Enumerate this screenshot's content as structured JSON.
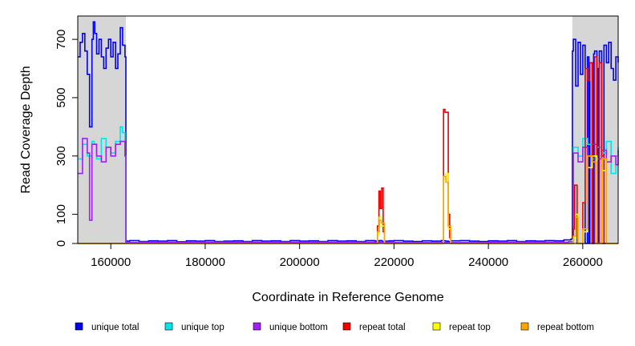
{
  "chart_data": {
    "type": "line",
    "title": "",
    "xlabel": "Coordinate in Reference Genome",
    "ylabel": "Read Coverage Depth",
    "xlim": [
      153000,
      267500
    ],
    "ylim": [
      0,
      780
    ],
    "xticks": [
      160000,
      180000,
      200000,
      220000,
      240000,
      260000
    ],
    "xtick_labels": [
      "160000",
      "180000",
      "200000",
      "220000",
      "240000",
      "260000"
    ],
    "yticks": [
      0,
      100,
      300,
      500,
      700
    ],
    "ytick_labels": [
      "0",
      "100",
      "300",
      "500",
      "700"
    ],
    "shaded_regions": [
      [
        153000,
        163200
      ],
      [
        257800,
        267500
      ]
    ],
    "grid": false,
    "legend_position": "bottom",
    "series": [
      {
        "name": "unique total",
        "color": "#0000ee",
        "x": [
          153000,
          153500,
          154000,
          154500,
          155000,
          155500,
          156000,
          156300,
          156600,
          157000,
          157500,
          158000,
          158500,
          159000,
          159500,
          160000,
          160500,
          161000,
          161500,
          162000,
          162500,
          163000,
          163200,
          163300,
          164000,
          166000,
          168000,
          170000,
          172000,
          174000,
          176000,
          178000,
          180000,
          182000,
          184000,
          186000,
          188000,
          190000,
          192000,
          194000,
          196000,
          198000,
          200000,
          202000,
          204000,
          206000,
          208000,
          210000,
          212000,
          214000,
          216000,
          216500,
          217000,
          217500,
          218000,
          219000,
          220000,
          222000,
          224000,
          226000,
          228000,
          230000,
          230500,
          231000,
          231500,
          232000,
          234000,
          236000,
          238000,
          240000,
          242000,
          244000,
          246000,
          248000,
          250000,
          252000,
          254000,
          256000,
          257500,
          257800,
          258000,
          258500,
          259000,
          259500,
          260000,
          260500,
          261000,
          261300,
          261500,
          262000,
          262300,
          262500,
          263000,
          263300,
          263500,
          264000,
          264500,
          265000,
          265500,
          266000,
          266500,
          267000,
          267500
        ],
        "y": [
          640,
          690,
          720,
          660,
          580,
          400,
          700,
          760,
          720,
          650,
          700,
          640,
          600,
          670,
          700,
          640,
          690,
          600,
          650,
          740,
          680,
          640,
          10,
          8,
          10,
          7,
          9,
          8,
          10,
          6,
          9,
          8,
          10,
          7,
          8,
          9,
          7,
          10,
          8,
          9,
          7,
          10,
          8,
          9,
          7,
          10,
          8,
          9,
          7,
          10,
          8,
          9,
          10,
          7,
          8,
          9,
          10,
          8,
          7,
          9,
          8,
          10,
          9,
          8,
          7,
          9,
          10,
          8,
          7,
          9,
          8,
          10,
          7,
          9,
          8,
          10,
          9,
          12,
          15,
          660,
          700,
          540,
          690,
          580,
          680,
          0,
          640,
          0,
          620,
          0,
          650,
          660,
          0,
          600,
          660,
          0,
          680,
          620,
          690,
          600,
          560,
          640,
          620
        ]
      },
      {
        "name": "unique top",
        "color": "#00e5ee",
        "x": [
          153000,
          154000,
          155000,
          156000,
          156500,
          157000,
          158000,
          159000,
          160000,
          161000,
          162000,
          162500,
          163000,
          163200,
          166000,
          200000,
          220000,
          240000,
          257000,
          258000,
          259000,
          260000,
          261000,
          262000,
          263000,
          264000,
          265000,
          266000,
          267000,
          267500
        ],
        "y": [
          290,
          340,
          300,
          350,
          340,
          290,
          360,
          330,
          310,
          350,
          400,
          380,
          300,
          3,
          4,
          4,
          3,
          4,
          6,
          330,
          300,
          360,
          340,
          290,
          330,
          310,
          350,
          240,
          300,
          330
        ]
      },
      {
        "name": "unique bottom",
        "color": "#a020f0",
        "x": [
          153000,
          154000,
          155000,
          155500,
          156000,
          157000,
          158000,
          159000,
          160000,
          161000,
          162000,
          163000,
          163200,
          166000,
          200000,
          220000,
          240000,
          257000,
          258000,
          259000,
          260000,
          261000,
          262000,
          263000,
          264000,
          265000,
          266000,
          267000,
          267500
        ],
        "y": [
          240,
          360,
          310,
          80,
          340,
          300,
          280,
          330,
          300,
          340,
          350,
          300,
          3,
          4,
          4,
          3,
          4,
          6,
          310,
          280,
          330,
          300,
          340,
          290,
          320,
          280,
          300,
          270,
          320
        ]
      },
      {
        "name": "repeat total",
        "color": "#ee0000",
        "x": [
          153000,
          214000,
          216500,
          216800,
          217100,
          217400,
          217700,
          218000,
          229000,
          230500,
          230800,
          231500,
          231800,
          232000,
          257000,
          258000,
          258300,
          258800,
          259500,
          260000,
          260500,
          261000,
          261500,
          262000,
          262500,
          263000,
          263500,
          264000,
          264500,
          265000,
          267500
        ],
        "y": [
          0,
          0,
          60,
          180,
          120,
          190,
          40,
          0,
          0,
          460,
          450,
          100,
          20,
          0,
          0,
          50,
          200,
          0,
          0,
          140,
          600,
          560,
          620,
          0,
          640,
          0,
          620,
          300,
          0,
          0,
          0
        ]
      },
      {
        "name": "repeat top",
        "color": "#ffff00",
        "x": [
          153000,
          214000,
          216500,
          216900,
          217300,
          218000,
          229000,
          230500,
          231000,
          231500,
          232000,
          257000,
          258000,
          258500,
          259000,
          260000,
          261000,
          262000,
          263000,
          264000,
          265000,
          267500
        ],
        "y": [
          0,
          0,
          30,
          90,
          60,
          0,
          0,
          220,
          240,
          50,
          0,
          0,
          20,
          100,
          0,
          40,
          260,
          300,
          0,
          250,
          0,
          0
        ]
      },
      {
        "name": "repeat bottom",
        "color": "#ffa500",
        "x": [
          153000,
          214000,
          216500,
          216900,
          217300,
          218000,
          229000,
          230500,
          231000,
          231500,
          232000,
          257000,
          258000,
          258500,
          259000,
          260000,
          261000,
          262000,
          263000,
          264000,
          265000,
          267500
        ],
        "y": [
          0,
          0,
          40,
          80,
          70,
          0,
          0,
          230,
          210,
          60,
          0,
          0,
          25,
          90,
          0,
          50,
          300,
          280,
          0,
          290,
          0,
          0
        ]
      }
    ]
  }
}
